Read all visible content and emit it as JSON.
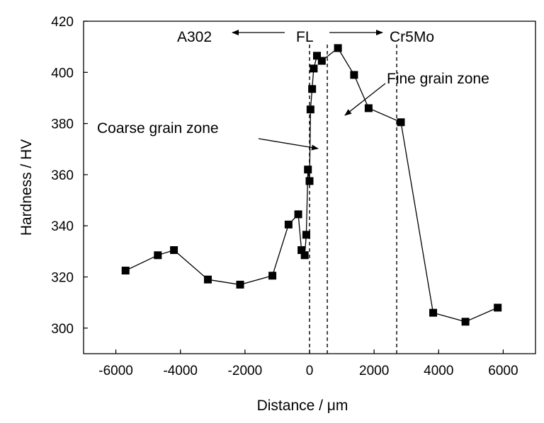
{
  "chart_data": {
    "type": "scatter",
    "xlabel": "Distance / μm",
    "ylabel": "Hardness / HV",
    "xlim": [
      -7000,
      7000
    ],
    "ylim": [
      290,
      420
    ],
    "xticks": [
      -6000,
      -4000,
      -2000,
      0,
      2000,
      4000,
      6000
    ],
    "yticks": [
      300,
      320,
      340,
      360,
      380,
      400,
      420
    ],
    "xtick_labels": [
      "-6000",
      "-4000",
      "-2000",
      "0",
      "2000",
      "4000",
      "6000"
    ],
    "ytick_labels": [
      "300",
      "320",
      "340",
      "360",
      "380",
      "400",
      "420"
    ],
    "grid": false,
    "marker": "square",
    "line_color": "#000000",
    "series": [
      {
        "name": "",
        "x": [
          -5700,
          -4700,
          -4200,
          -3150,
          -2150,
          -1150,
          -650,
          -350,
          -250,
          -150,
          -100,
          -50,
          0,
          30,
          80,
          130,
          230,
          380,
          880,
          1380,
          1830,
          2830,
          3830,
          4830,
          5830
        ],
        "y": [
          322.5,
          328.5,
          330.5,
          319,
          317,
          320.5,
          340.5,
          344.5,
          330.5,
          328.5,
          336.5,
          362,
          357.5,
          385.5,
          393.5,
          401.5,
          406.5,
          404.5,
          409.5,
          399,
          386,
          380.5,
          306,
          302.5,
          308
        ]
      }
    ],
    "vlines": [
      0,
      550,
      2700
    ],
    "annotations": {
      "left_material": "A302",
      "fusion_line": "FL",
      "right_material": "Cr5Mo",
      "coarse_zone": "Coarse grain zone",
      "fine_zone": "Fine grain zone"
    }
  }
}
